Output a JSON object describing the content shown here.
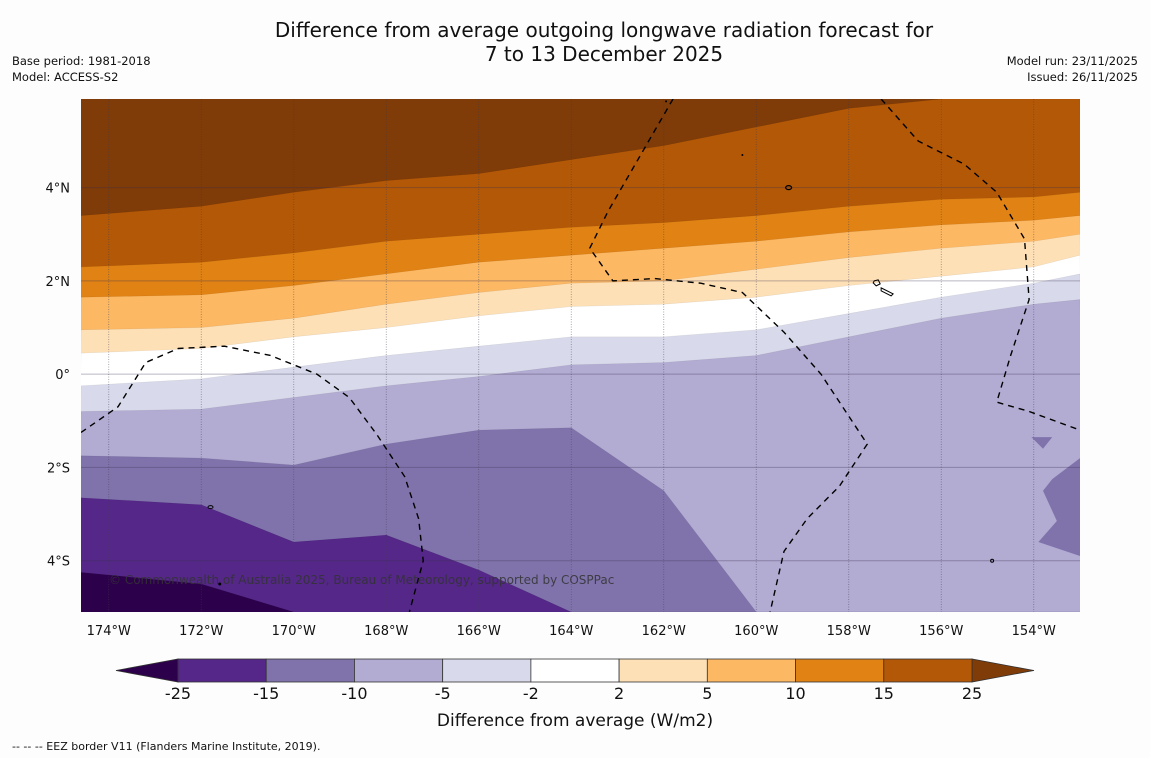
{
  "header": {
    "title_line1": "Difference from average outgoing longwave radiation forecast for",
    "title_line2": "7 to 13 December 2025",
    "base_period": "Base period: 1981-2018",
    "model": "Model: ACCESS-S2",
    "model_run": "Model run: 23/11/2025",
    "issued": "Issued: 26/11/2025"
  },
  "footer": {
    "legend_note": "--  --  -- EEZ border V11 (Flanders Marine Institute, 2019)."
  },
  "chart_data": {
    "type": "heatmap",
    "title": "Difference from average outgoing longwave radiation forecast for 7 to 13 December 2025",
    "xlabel": "",
    "ylabel": "",
    "x_ticks": [
      "174°W",
      "172°W",
      "170°W",
      "168°W",
      "166°W",
      "164°W",
      "162°W",
      "160°W",
      "158°W",
      "156°W",
      "154°W"
    ],
    "x_tick_values": [
      -174,
      -172,
      -170,
      -168,
      -166,
      -164,
      -162,
      -160,
      -158,
      -156,
      -154
    ],
    "y_ticks": [
      "4°N",
      "2°N",
      "0°",
      "2°S",
      "4°S"
    ],
    "y_tick_values": [
      4,
      2,
      0,
      -2,
      -4
    ],
    "xlim": [
      -174.6,
      -153.0
    ],
    "ylim": [
      -5.1,
      5.9
    ],
    "grid": true,
    "copyright": "© Commonwealth of Australia 2025, Bureau of Meteorology, supported by COSPPac",
    "colorbar": {
      "title": "Difference from average (W/m2)",
      "levels": [
        -25,
        -15,
        -10,
        -5,
        -2,
        2,
        5,
        10,
        15,
        25
      ],
      "level_labels": [
        "-25",
        "-15",
        "-10",
        "-5",
        "-2",
        "2",
        "5",
        "10",
        "15",
        "25"
      ],
      "under_color": "#2d004b",
      "over_color": "#7f3b08",
      "colors": [
        "#542788",
        "#8073ac",
        "#b2abd2",
        "#d8daeb",
        "#ffffff",
        "#fee0b6",
        "#fdb863",
        "#e08214",
        "#b35806"
      ],
      "extend": "both"
    },
    "contour_boundaries_note": "Approximate boundaries (lat) between OLR anomaly bands, sampled at longitudes",
    "boundary_longitudes": [
      -174.6,
      -172,
      -170,
      -168,
      -166,
      -164,
      -162,
      -160,
      -158,
      -156,
      -154,
      -153
    ],
    "boundaries": [
      {
        "between": "25 / 15-25",
        "lats": [
          3.4,
          3.6,
          3.9,
          4.15,
          4.3,
          4.6,
          4.9,
          5.3,
          5.7,
          5.9,
          5.9,
          5.9
        ]
      },
      {
        "between": "15-25 / 10-15",
        "lats": [
          2.3,
          2.4,
          2.6,
          2.85,
          3.0,
          3.15,
          3.25,
          3.4,
          3.6,
          3.75,
          3.8,
          3.9
        ]
      },
      {
        "between": "10-15 / 5-10",
        "lats": [
          1.65,
          1.7,
          1.9,
          2.15,
          2.4,
          2.55,
          2.7,
          2.85,
          3.05,
          3.2,
          3.3,
          3.4
        ]
      },
      {
        "between": "5-10 / 2-5",
        "lats": [
          0.95,
          1.0,
          1.2,
          1.5,
          1.75,
          1.95,
          2.0,
          2.25,
          2.5,
          2.7,
          2.85,
          3.0
        ]
      },
      {
        "between": "2-5 / -2-2",
        "lats": [
          0.45,
          0.55,
          0.8,
          1.0,
          1.25,
          1.45,
          1.5,
          1.65,
          1.9,
          2.1,
          2.3,
          2.55
        ]
      },
      {
        "between": "-2-2 / -5--2",
        "lats": [
          -0.25,
          -0.1,
          0.15,
          0.4,
          0.6,
          0.8,
          0.8,
          0.95,
          1.3,
          1.65,
          1.95,
          2.15
        ]
      },
      {
        "between": "-5--2 / -10--5",
        "lats": [
          -0.8,
          -0.75,
          -0.5,
          -0.25,
          -0.05,
          0.2,
          0.25,
          0.4,
          0.8,
          1.2,
          1.5,
          1.6
        ]
      },
      {
        "between": "-10--5 / -15--10",
        "lats": [
          -1.75,
          -1.8,
          -1.95,
          -1.5,
          -1.2,
          -1.15,
          -2.5,
          -5.1,
          -5.1,
          -5.1,
          -5.1,
          -5.1
        ]
      },
      {
        "between": "-15--10 / -25--15",
        "lats": [
          -2.65,
          -2.8,
          -3.6,
          -3.45,
          -4.2,
          -5.1,
          -5.1,
          -5.1,
          -5.1,
          -5.1,
          -5.1,
          -5.1
        ]
      },
      {
        "between": "-25--15 / <-25",
        "lats": [
          -4.25,
          -4.5,
          -5.1,
          -5.1,
          -5.1,
          -5.1,
          -5.1,
          -5.1,
          -5.1,
          -5.1,
          -5.1,
          -5.1
        ]
      }
    ],
    "eez_border_note": "Dashed EEZ borders (lon, lat)",
    "eez_borders": [
      [
        [
          -174.6,
          -1.25
        ],
        [
          -173.8,
          -0.7
        ],
        [
          -173.2,
          0.25
        ],
        [
          -172.5,
          0.55
        ],
        [
          -171.5,
          0.6
        ],
        [
          -170.5,
          0.4
        ],
        [
          -169.5,
          0.0
        ],
        [
          -168.8,
          -0.5
        ],
        [
          -168.2,
          -1.3
        ],
        [
          -167.6,
          -2.2
        ],
        [
          -167.3,
          -3.1
        ],
        [
          -167.2,
          -4.0
        ],
        [
          -167.5,
          -5.1
        ]
      ],
      [
        [
          -161.8,
          5.9
        ],
        [
          -162.5,
          4.7
        ],
        [
          -163.2,
          3.5
        ],
        [
          -163.6,
          2.7
        ],
        [
          -163.1,
          2.0
        ],
        [
          -162.2,
          2.05
        ],
        [
          -161.2,
          1.95
        ],
        [
          -160.3,
          1.75
        ],
        [
          -159.4,
          0.9
        ],
        [
          -158.6,
          0.0
        ],
        [
          -157.6,
          -1.5
        ],
        [
          -158.2,
          -2.4
        ],
        [
          -158.9,
          -3.1
        ],
        [
          -159.4,
          -3.8
        ],
        [
          -159.7,
          -5.1
        ]
      ],
      [
        [
          -157.3,
          5.9
        ],
        [
          -156.5,
          5.0
        ],
        [
          -155.5,
          4.5
        ],
        [
          -154.8,
          3.9
        ],
        [
          -154.2,
          2.9
        ],
        [
          -154.1,
          1.6
        ],
        [
          -154.5,
          0.4
        ],
        [
          -154.8,
          -0.6
        ],
        [
          -154.1,
          -0.8
        ],
        [
          -153.0,
          -1.2
        ]
      ]
    ]
  }
}
